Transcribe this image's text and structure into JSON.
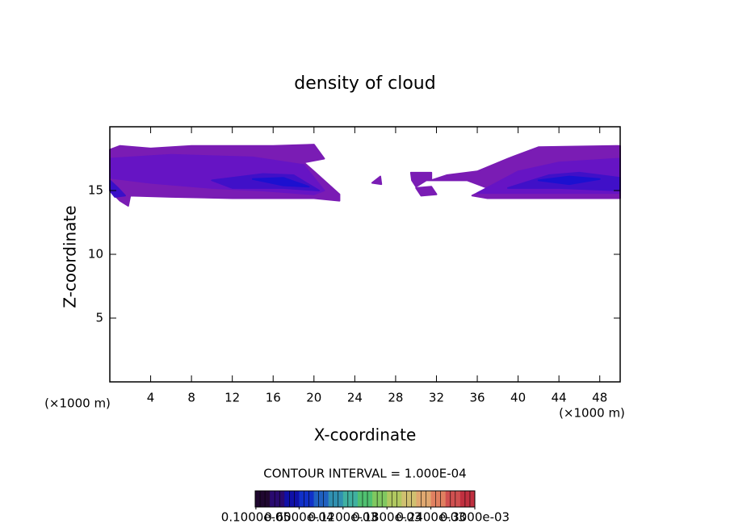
{
  "chart_data": {
    "type": "contour",
    "title": "density of cloud",
    "xlabel": "X-coordinate",
    "ylabel": "Z-coordinate",
    "unit_label": "(×1000 m)",
    "annotation": "CONTOUR INTERVAL = 1.000E-04",
    "xlim": [
      0,
      50
    ],
    "ylim": [
      0,
      20
    ],
    "xticks": [
      4,
      8,
      12,
      16,
      20,
      24,
      28,
      32,
      36,
      40,
      44,
      48
    ],
    "yticks": [
      5,
      10,
      15
    ],
    "regions": [
      {
        "color": "#7a1cb4",
        "x": [
          0,
          1,
          4,
          8,
          16,
          20,
          21,
          19,
          20,
          22.5,
          22.5,
          20,
          12,
          6,
          2,
          1.8,
          1,
          0
        ],
        "z": [
          18.2,
          18.5,
          18.3,
          18.5,
          18.5,
          18.6,
          17.5,
          17.2,
          16.5,
          14.7,
          14.2,
          14.4,
          14.4,
          14.5,
          14.6,
          13.8,
          14.2,
          15
        ]
      },
      {
        "color": "#6614c4",
        "x": [
          0,
          6,
          14,
          19,
          21,
          20,
          15,
          10,
          4,
          0
        ],
        "z": [
          17.5,
          17.8,
          17.6,
          17,
          15,
          14.7,
          15,
          15.2,
          15.6,
          16
        ]
      },
      {
        "color": "#4010c8",
        "x": [
          10,
          15,
          18,
          20.5,
          17,
          12
        ],
        "z": [
          15.8,
          16.3,
          16.2,
          15,
          15.2,
          15.2
        ]
      },
      {
        "color": "#1c10d0",
        "x": [
          14,
          17,
          19.5,
          17
        ],
        "z": [
          15.9,
          16,
          15.3,
          15.4
        ]
      },
      {
        "color": "#3a10c8",
        "x": [
          0,
          0.8,
          1.5,
          0.5,
          0
        ],
        "z": [
          15.8,
          15.2,
          14.6,
          14.5,
          15
        ]
      },
      {
        "color": "#7a1cb4",
        "x": [
          29.5,
          31.5,
          31.5,
          33,
          36,
          39,
          42,
          50,
          50,
          40,
          37,
          35.5,
          37,
          35,
          31,
          30,
          29.6
        ],
        "z": [
          16.4,
          16.4,
          15.8,
          16.2,
          16.5,
          17.5,
          18.4,
          18.5,
          14.4,
          14.4,
          14.4,
          14.6,
          15.2,
          15.8,
          15.8,
          15.3,
          15.8
        ]
      },
      {
        "color": "#7a1cb4",
        "x": [
          25.7,
          26.5,
          26.6
        ],
        "z": [
          15.6,
          16.1,
          15.5
        ]
      },
      {
        "color": "#7a1cb4",
        "x": [
          30,
          31.5,
          32,
          30.5
        ],
        "z": [
          15.2,
          15.3,
          14.7,
          14.6
        ]
      },
      {
        "color": "#6614c4",
        "x": [
          36,
          40,
          44,
          50,
          50,
          44
        ],
        "z": [
          14.8,
          16.5,
          17.2,
          17.5,
          14.8,
          14.8
        ]
      },
      {
        "color": "#4010c8",
        "x": [
          39,
          43,
          46,
          50,
          50,
          44
        ],
        "z": [
          15.2,
          16.2,
          16.4,
          16,
          15,
          15.2
        ]
      },
      {
        "color": "#1c10d0",
        "x": [
          42,
          45,
          48,
          45
        ],
        "z": [
          15.8,
          16.1,
          15.9,
          15.5
        ]
      }
    ],
    "colorbar": {
      "lim": [
        0,
        0.0003
      ],
      "colors": [
        "#200830",
        "#2a0a70",
        "#1010a8",
        "#1030c8",
        "#2060c0",
        "#3090b0",
        "#40b0a0",
        "#50c070",
        "#80c860",
        "#b0c860",
        "#d0c070",
        "#e0a870",
        "#e08060",
        "#d05050",
        "#c03040"
      ],
      "ticks": [
        {
          "value": 1e-06,
          "label": "0.1000e-05"
        },
        {
          "value": 6e-05,
          "label": "0.6000e-04"
        },
        {
          "value": 0.00012,
          "label": "0.1200e-03"
        },
        {
          "value": 0.00018,
          "label": "0.1800e-03"
        },
        {
          "value": 0.00024,
          "label": "0.2400e-03"
        },
        {
          "value": 0.0003,
          "label": "0.3000e-03"
        }
      ]
    }
  }
}
